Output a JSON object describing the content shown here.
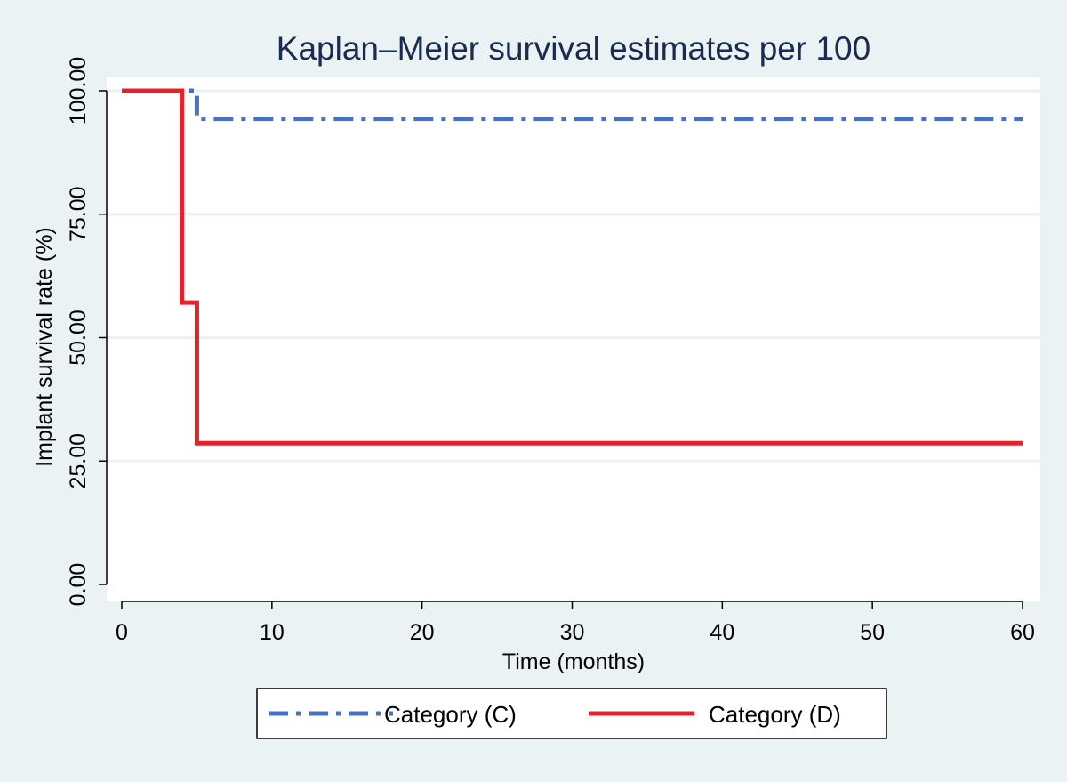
{
  "chart_data": {
    "type": "line",
    "title": "Kaplan–Meier survival estimates per 100",
    "xlabel": "Time (months)",
    "ylabel": "Implant survival rate (%)",
    "xlim": [
      0,
      60
    ],
    "ylim": [
      0,
      100
    ],
    "x_ticks": [
      "0",
      "10",
      "20",
      "30",
      "40",
      "50",
      "60"
    ],
    "y_ticks": [
      "0.00",
      "25.00",
      "50.00",
      "75.00",
      "100.00"
    ],
    "grid": true,
    "legend_position": "bottom",
    "series": [
      {
        "name": "Category (C)",
        "color": "#4472c4",
        "line_style": "dash-dot",
        "x": [
          0,
          4.5,
          5,
          60
        ],
        "y": [
          100,
          100,
          94.3,
          94.3
        ]
      },
      {
        "name": "Category (D)",
        "color": "#e8202a",
        "line_style": "solid",
        "x": [
          0,
          4,
          5,
          60
        ],
        "y": [
          100,
          57.1,
          28.6,
          28.6
        ]
      }
    ]
  }
}
